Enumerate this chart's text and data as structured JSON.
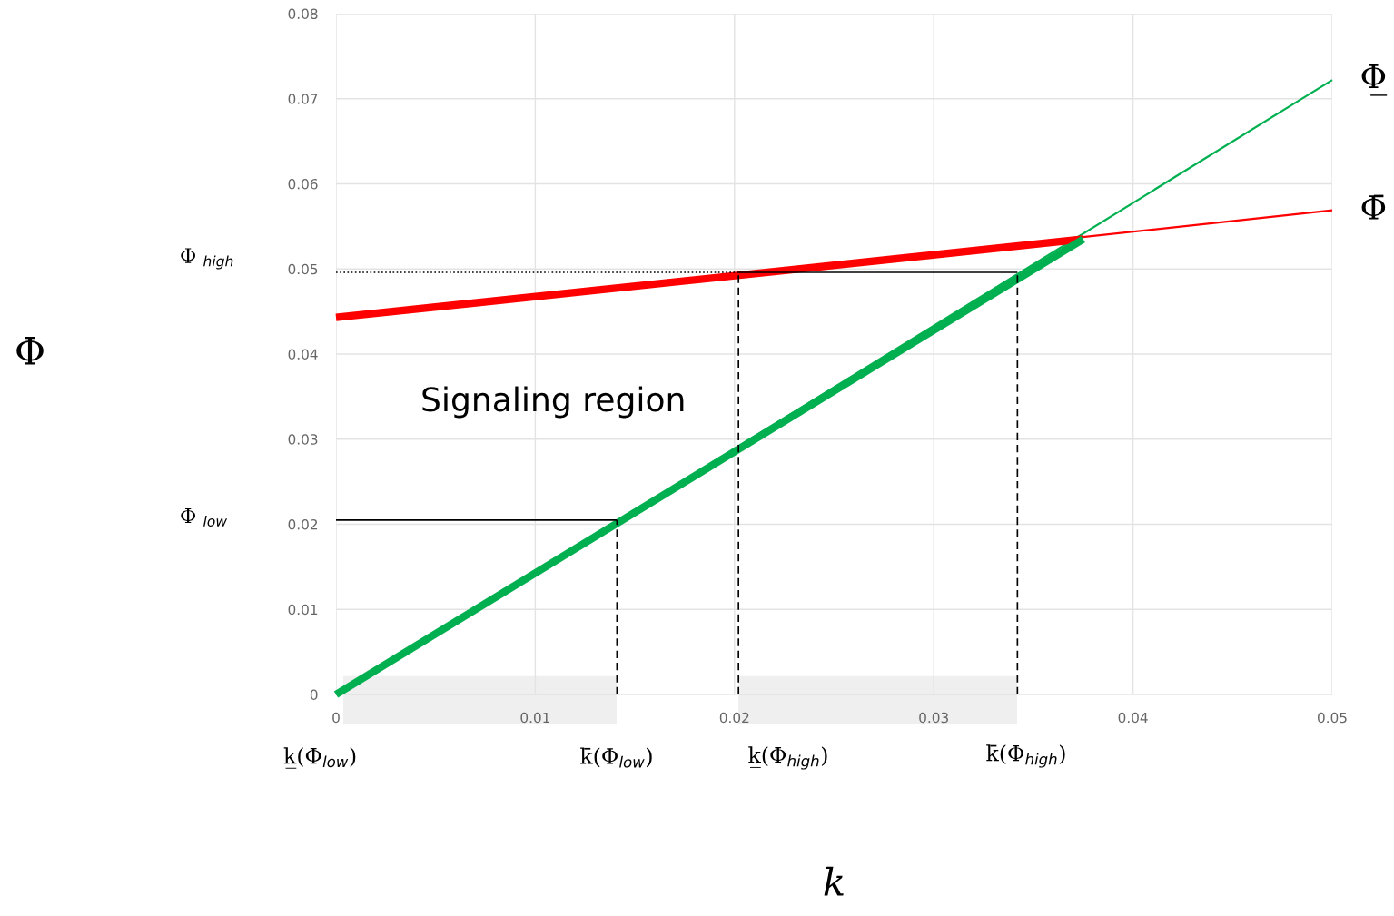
{
  "chart_data": {
    "type": "line",
    "xlabel": "k",
    "xlim": [
      0,
      0.05
    ],
    "ylim": [
      0,
      0.08
    ],
    "xticks": [
      0,
      0.01,
      0.02,
      0.03,
      0.04,
      0.05
    ],
    "yticks": [
      0,
      0.01,
      0.02,
      0.03,
      0.04,
      0.05,
      0.06,
      0.07,
      0.08
    ],
    "grid": true,
    "legend": false,
    "marker": "none",
    "series": [
      {
        "name": "Φ̲",
        "color": "#00b050",
        "x": [
          0,
          0.05
        ],
        "values": [
          0,
          0.0722
        ]
      },
      {
        "name": "Φ̄",
        "color": "#ff0000",
        "x": [
          0,
          0.05
        ],
        "values": [
          0.0443,
          0.0569
        ]
      },
      {
        "color": "#ff0000",
        "x": [
          0,
          0.0375
        ],
        "values": [
          0.0443,
          0.0535
        ]
      },
      {
        "color": "#00b050",
        "x": [
          0,
          0.0375
        ],
        "values": [
          0,
          0.0535
        ]
      },
      {
        "color": "#000000",
        "line_style": "dotted",
        "x": [
          0,
          0.0202
        ],
        "values": [
          0.0496,
          0.0496
        ]
      },
      {
        "color": "#000000",
        "line_style": "solid",
        "x": [
          0.0202,
          0.0342
        ],
        "values": [
          0.0496,
          0.0496
        ]
      },
      {
        "color": "#000000",
        "line_style": "solid",
        "x": [
          0,
          0.0141
        ],
        "values": [
          0.0205,
          0.0205
        ]
      },
      {
        "color": "#000000",
        "line_style": "dashed",
        "x": [
          0.0141,
          0.0141
        ],
        "values": [
          0,
          0.0205
        ]
      },
      {
        "color": "#000000",
        "line_style": "dashed",
        "x": [
          0.0202,
          0.0202
        ],
        "values": [
          0,
          0.0496
        ]
      },
      {
        "color": "#000000",
        "line_style": "dashed",
        "x": [
          0.0342,
          0.0342
        ],
        "values": [
          0,
          0.0496
        ]
      }
    ],
    "annotations": [
      "Signaling region",
      "Φ $_{high}$",
      "Φ $_{low}$",
      "k̲(Φ$_{low}$)",
      "k̄(Φ$_{low}$)",
      "k̲(Φ$_{high}$)",
      "k̄(Φ$_{high}$)",
      "Φ"
    ]
  }
}
